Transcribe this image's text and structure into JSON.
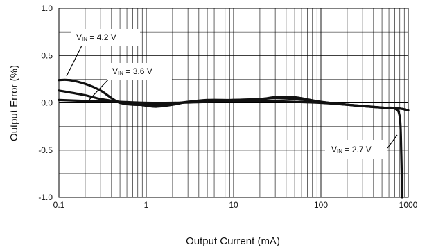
{
  "chart_data": {
    "type": "line",
    "xlabel": "Output Current (mA)",
    "ylabel": "Output Error (%)",
    "xscale": "log",
    "xlim": [
      0.1,
      1000
    ],
    "ylim": [
      -1.0,
      1.0
    ],
    "grid": true,
    "x_ticks": [
      "0.1",
      "1",
      "10",
      "100",
      "1000"
    ],
    "y_ticks": [
      "1.0",
      "0.5",
      "0.0",
      "-0.5",
      "-1.0"
    ],
    "series": [
      {
        "name": "VIN = 4.2 V",
        "points": [
          [
            0.1,
            0.24
          ],
          [
            0.13,
            0.24
          ],
          [
            0.2,
            0.2
          ],
          [
            0.3,
            0.13
          ],
          [
            0.4,
            0.05
          ],
          [
            0.5,
            0.0
          ],
          [
            0.7,
            -0.02
          ],
          [
            1,
            -0.02
          ],
          [
            1.5,
            -0.02
          ],
          [
            2,
            -0.01
          ],
          [
            3,
            0.01
          ],
          [
            5,
            0.02
          ],
          [
            10,
            0.03
          ],
          [
            20,
            0.04
          ],
          [
            30,
            0.05
          ],
          [
            50,
            0.04
          ],
          [
            100,
            0.01
          ],
          [
            200,
            -0.02
          ],
          [
            500,
            -0.05
          ],
          [
            800,
            -0.06
          ],
          [
            1000,
            -0.08
          ]
        ]
      },
      {
        "name": "VIN = 3.6 V",
        "points": [
          [
            0.1,
            0.13
          ],
          [
            0.2,
            0.08
          ],
          [
            0.3,
            0.04
          ],
          [
            0.5,
            0.01
          ],
          [
            0.7,
            -0.01
          ],
          [
            1,
            -0.03
          ],
          [
            1.3,
            -0.04
          ],
          [
            2,
            -0.02
          ],
          [
            3,
            0.01
          ],
          [
            5,
            0.03
          ],
          [
            10,
            0.03
          ],
          [
            20,
            0.04
          ],
          [
            30,
            0.06
          ],
          [
            50,
            0.06
          ],
          [
            100,
            0.01
          ],
          [
            200,
            -0.02
          ],
          [
            500,
            -0.05
          ],
          [
            800,
            -0.06
          ],
          [
            1000,
            -0.08
          ]
        ]
      },
      {
        "name": "VIN = 2.7 V",
        "points": [
          [
            0.1,
            0.03
          ],
          [
            0.2,
            0.02
          ],
          [
            0.5,
            0.01
          ],
          [
            1,
            0.0
          ],
          [
            2,
            0.0
          ],
          [
            5,
            0.01
          ],
          [
            10,
            0.02
          ],
          [
            20,
            0.02
          ],
          [
            50,
            0.01
          ],
          [
            100,
            0.0
          ],
          [
            200,
            -0.02
          ],
          [
            500,
            -0.05
          ],
          [
            700,
            -0.06
          ],
          [
            800,
            -0.15
          ],
          [
            830,
            -0.5
          ],
          [
            850,
            -1.0
          ]
        ]
      }
    ],
    "annotations": [
      {
        "text_main": "V",
        "text_sub": "IN",
        "text_rest": " = 4.2 V"
      },
      {
        "text_main": "V",
        "text_sub": "IN",
        "text_rest": " = 3.6 V"
      },
      {
        "text_main": "V",
        "text_sub": "IN",
        "text_rest": " = 2.7 V"
      }
    ]
  }
}
